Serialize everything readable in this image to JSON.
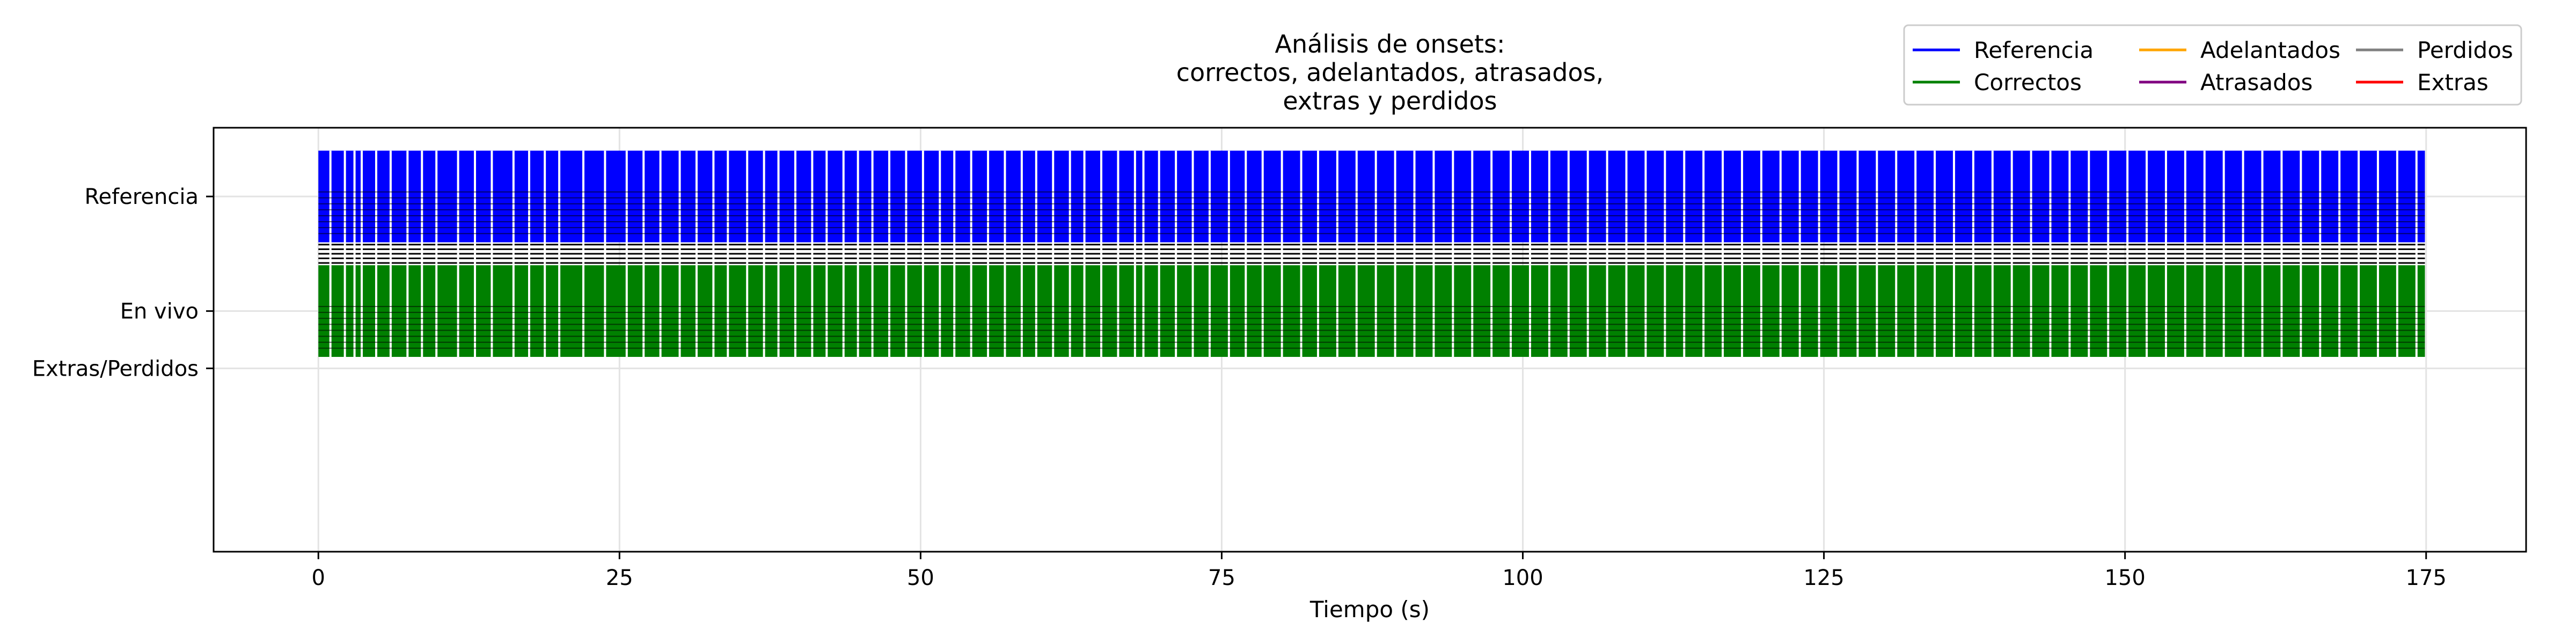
{
  "chart_data": {
    "type": "event-raster",
    "title_lines": [
      "Análisis de onsets:",
      "correctos, adelantados, atrasados,",
      "extras y perdidos"
    ],
    "xlabel": "Tiempo (s)",
    "ylabel": "",
    "xlim": [
      -8.7,
      183.3
    ],
    "ylim": [
      -0.8,
      1.05
    ],
    "grid": true,
    "legend_position": "top-right",
    "x_ticks": [
      0,
      25,
      50,
      75,
      100,
      125,
      150,
      175
    ],
    "x_tick_labels": [
      "0",
      "25",
      "50",
      "75",
      "100",
      "125",
      "150",
      "175"
    ],
    "y_ticks": [
      {
        "value": 0.75,
        "label": "Referencia"
      },
      {
        "value": 0.25,
        "label": "En vivo"
      },
      {
        "value": 0.0,
        "label": "Extras/Perdidos"
      }
    ],
    "legend": [
      {
        "label": "Referencia",
        "color": "#0000ff"
      },
      {
        "label": "Correctos",
        "color": "#008000"
      },
      {
        "label": "Adelantados",
        "color": "#ffa500"
      },
      {
        "label": "Atrasados",
        "color": "#800080"
      },
      {
        "label": "Perdidos",
        "color": "#808080"
      },
      {
        "label": "Extras",
        "color": "#ff0000"
      }
    ],
    "series": [
      {
        "name": "Referencia",
        "color": "#0000ff",
        "y_range": [
          0.55,
          0.95
        ],
        "time_range": [
          0,
          174.9
        ],
        "gap_times": [
          1.0,
          2.2,
          3.0,
          3.6,
          4.8,
          6.0,
          7.4,
          8.6,
          9.8,
          11.6,
          13.0,
          14.4,
          16.2,
          17.5,
          18.8,
          20.0,
          22.0,
          23.8,
          25.6,
          27.0,
          28.4,
          30.0,
          31.4,
          32.8,
          34.0,
          35.6,
          37.0,
          38.2,
          39.6,
          41.0,
          42.2,
          43.6,
          44.8,
          46.0,
          47.4,
          48.8,
          50.2,
          51.6,
          52.8,
          54.2,
          55.6,
          57.0,
          58.4,
          59.6,
          61.0,
          62.4,
          63.6,
          65.0,
          66.4,
          67.8,
          68.5,
          69.8,
          71.2,
          72.6,
          74.0,
          75.6,
          77.0,
          78.4,
          80.0,
          81.6,
          83.0,
          84.6,
          86.2,
          87.8,
          89.4,
          91.0,
          92.6,
          94.2,
          95.8,
          97.4,
          99.0,
          100.6,
          102.2,
          103.8,
          105.4,
          107.0,
          108.6,
          110.2,
          111.8,
          113.4,
          115.0,
          116.6,
          118.2,
          119.8,
          121.4,
          123.0,
          124.6,
          126.2,
          127.8,
          129.4,
          131.0,
          132.6,
          134.2,
          135.8,
          137.4,
          139.0,
          140.6,
          142.2,
          143.8,
          145.4,
          147.0,
          148.6,
          150.2,
          151.8,
          153.4,
          155.0,
          156.6,
          158.2,
          159.8,
          161.4,
          163.0,
          164.6,
          166.2,
          167.8,
          169.4,
          171.0,
          172.6,
          174.2
        ]
      },
      {
        "name": "Correctos",
        "color": "#008000",
        "y_range": [
          0.05,
          0.45
        ],
        "time_range": [
          0,
          174.9
        ],
        "gap_times": [
          1.0,
          2.2,
          3.0,
          3.6,
          4.8,
          6.0,
          7.4,
          8.6,
          9.8,
          11.6,
          13.0,
          14.4,
          16.2,
          17.5,
          18.8,
          20.0,
          22.0,
          23.8,
          25.6,
          27.0,
          28.4,
          30.0,
          31.4,
          32.8,
          34.0,
          35.6,
          37.0,
          38.2,
          39.6,
          41.0,
          42.2,
          43.6,
          44.8,
          46.0,
          47.4,
          48.8,
          50.2,
          51.6,
          52.8,
          54.2,
          55.6,
          57.0,
          58.4,
          59.6,
          61.0,
          62.4,
          63.6,
          65.0,
          66.4,
          67.8,
          68.5,
          69.8,
          71.2,
          72.6,
          74.0,
          75.6,
          77.0,
          78.4,
          80.0,
          81.6,
          83.0,
          84.6,
          86.2,
          87.8,
          89.4,
          91.0,
          92.6,
          94.2,
          95.8,
          97.4,
          99.0,
          100.6,
          102.2,
          103.8,
          105.4,
          107.0,
          108.6,
          110.2,
          111.8,
          113.4,
          115.0,
          116.6,
          118.2,
          119.8,
          121.4,
          123.0,
          124.6,
          126.2,
          127.8,
          129.4,
          131.0,
          132.6,
          134.2,
          135.8,
          137.4,
          139.0,
          140.6,
          142.2,
          143.8,
          145.4,
          147.0,
          148.6,
          150.2,
          151.8,
          153.4,
          155.0,
          156.6,
          158.2,
          159.8,
          161.4,
          163.0,
          164.6,
          166.2,
          167.8,
          169.4,
          171.0,
          172.6,
          174.2
        ]
      }
    ],
    "connector_band": {
      "y_range": [
        0.45,
        0.55
      ],
      "y_values": [
        0.46,
        0.48,
        0.5,
        0.52,
        0.54
      ]
    }
  }
}
